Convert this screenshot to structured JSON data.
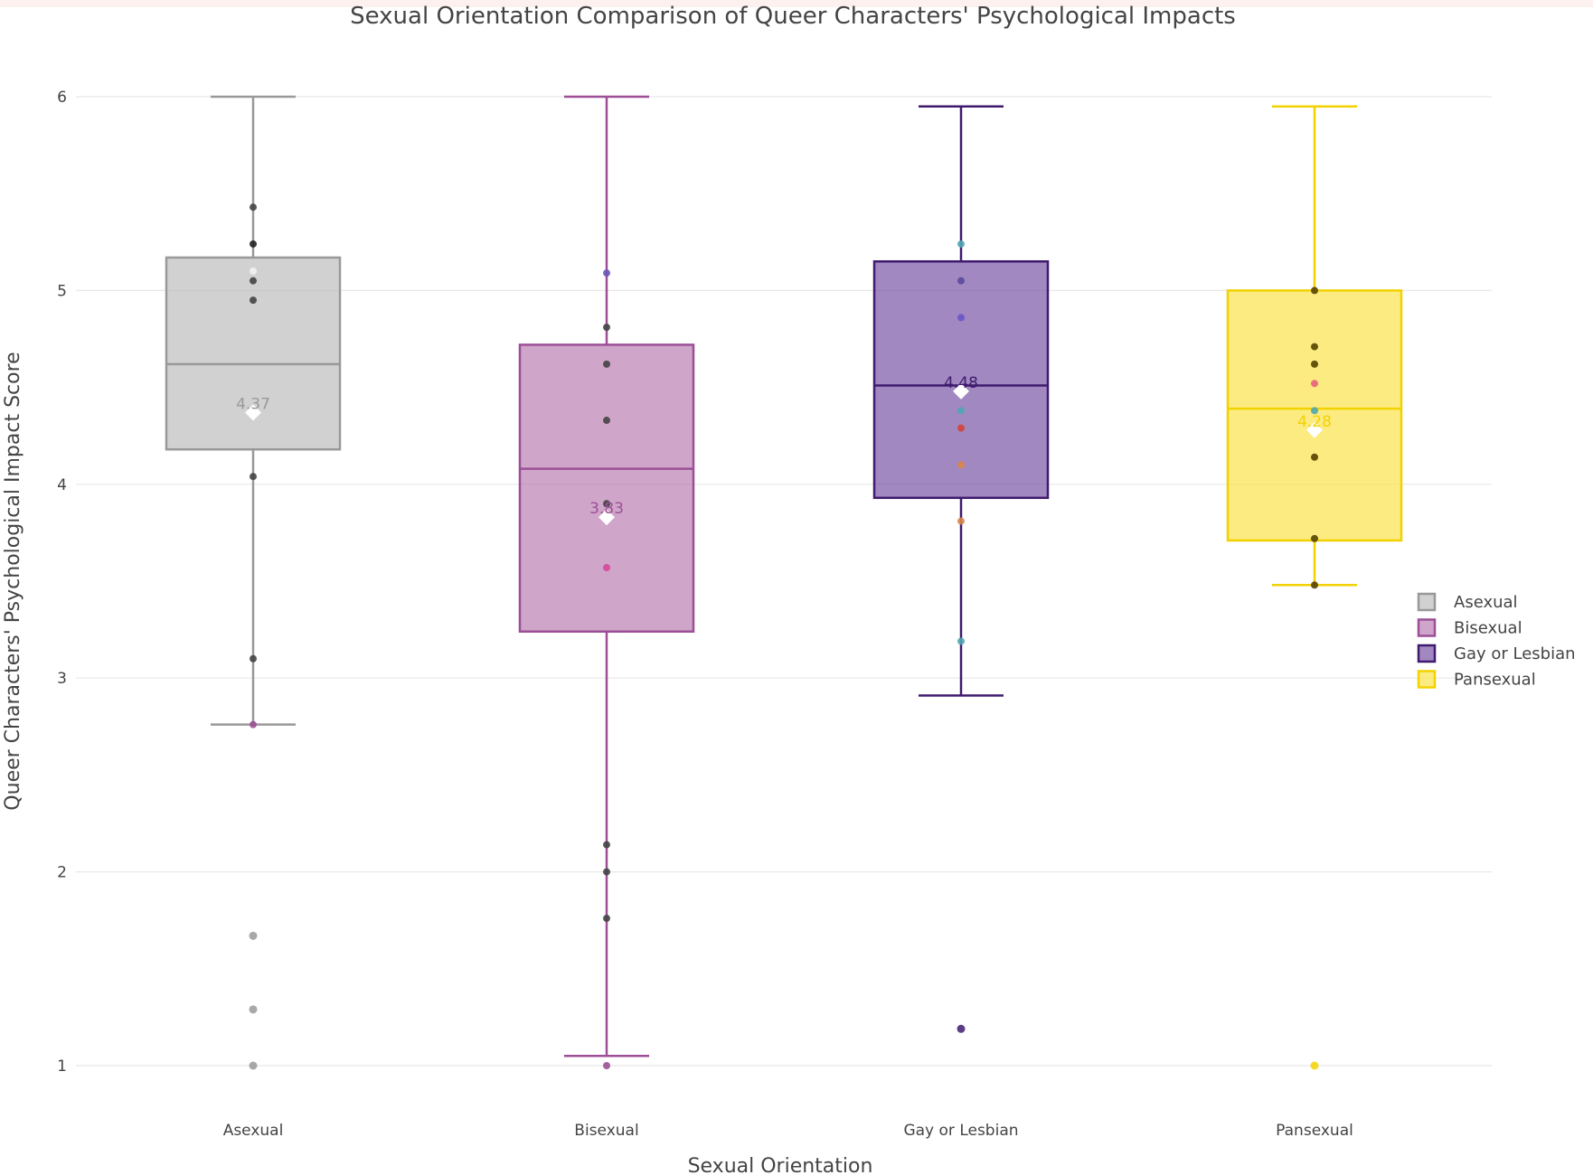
{
  "chart_data": {
    "type": "box",
    "title": "Sexual Orientation Comparison of Queer Characters' Psychological Impacts",
    "xlabel": "Sexual Orientation",
    "ylabel": "Queer Characters' Psychological Impact Score",
    "ylim": [
      0.75,
      6.2
    ],
    "yticks": [
      1,
      2,
      3,
      4,
      5,
      6
    ],
    "grid": true,
    "legend_position": "right",
    "categories": [
      "Asexual",
      "Bisexual",
      "Gay or Lesbian",
      "Pansexual"
    ],
    "series": [
      {
        "name": "Asexual",
        "color": "#999999",
        "fill": "rgba(190,190,190,0.70)",
        "min": 2.76,
        "q1": 4.18,
        "median": 4.62,
        "q3": 5.17,
        "max": 6.0,
        "mean": 4.37,
        "mean_label": "4.37",
        "points": [
          {
            "y": 5.43,
            "color": "#444444"
          },
          {
            "y": 5.24,
            "color": "#222222"
          },
          {
            "y": 5.1,
            "color": "#f2f2f2"
          },
          {
            "y": 5.05,
            "color": "#444444"
          },
          {
            "y": 4.95,
            "color": "#444444"
          },
          {
            "y": 4.04,
            "color": "#444444"
          },
          {
            "y": 3.1,
            "color": "#444444"
          },
          {
            "y": 2.76,
            "color": "#9c4f96"
          }
        ],
        "outliers": [
          1.67,
          1.29,
          1.0
        ]
      },
      {
        "name": "Bisexual",
        "color": "#9c4f96",
        "fill": "rgba(178,110,170,0.62)",
        "min": 1.05,
        "q1": 3.24,
        "median": 4.08,
        "q3": 4.72,
        "max": 6.0,
        "mean": 3.83,
        "mean_label": "3.83",
        "points": [
          {
            "y": 5.09,
            "color": "#6a55b8"
          },
          {
            "y": 4.81,
            "color": "#444444"
          },
          {
            "y": 4.62,
            "color": "#444444"
          },
          {
            "y": 4.33,
            "color": "#444444"
          },
          {
            "y": 3.9,
            "color": "#444444"
          },
          {
            "y": 3.57,
            "color": "#d6479a"
          },
          {
            "y": 2.14,
            "color": "#444444"
          },
          {
            "y": 2.0,
            "color": "#444444"
          },
          {
            "y": 1.76,
            "color": "#444444"
          },
          {
            "y": 1.0,
            "color": "#9c4f96"
          }
        ],
        "outliers": []
      },
      {
        "name": "Gay or Lesbian",
        "color": "#3f1a6e",
        "fill": "rgba(110,72,160,0.65)",
        "min": 2.91,
        "q1": 3.93,
        "median": 4.51,
        "q3": 5.15,
        "max": 5.95,
        "mean": 4.48,
        "mean_label": "4.48",
        "points": [
          {
            "y": 5.24,
            "color": "#4fa6b2"
          },
          {
            "y": 5.05,
            "color": "#5a4a9c"
          },
          {
            "y": 4.86,
            "color": "#6a55c8"
          },
          {
            "y": 4.38,
            "color": "#4fa6b2"
          },
          {
            "y": 4.29,
            "color": "#d0453c"
          },
          {
            "y": 4.1,
            "color": "#d9864a"
          },
          {
            "y": 3.81,
            "color": "#d9864a"
          },
          {
            "y": 3.19,
            "color": "#4fa6b2"
          }
        ],
        "outliers": [
          1.19
        ]
      },
      {
        "name": "Pansexual",
        "color": "#f2d200",
        "fill": "rgba(250,226,70,0.68)",
        "min": 3.48,
        "q1": 3.71,
        "median": 4.39,
        "q3": 5.0,
        "max": 5.95,
        "mean": 4.28,
        "mean_label": "4.28",
        "points": [
          {
            "y": 5.0,
            "color": "#554400"
          },
          {
            "y": 4.71,
            "color": "#554400"
          },
          {
            "y": 4.62,
            "color": "#554400"
          },
          {
            "y": 4.52,
            "color": "#e8607a"
          },
          {
            "y": 4.38,
            "color": "#4fa6b2"
          },
          {
            "y": 4.14,
            "color": "#554400"
          },
          {
            "y": 3.72,
            "color": "#554400"
          },
          {
            "y": 3.48,
            "color": "#554400"
          }
        ],
        "outliers": [
          1.0
        ]
      }
    ]
  }
}
